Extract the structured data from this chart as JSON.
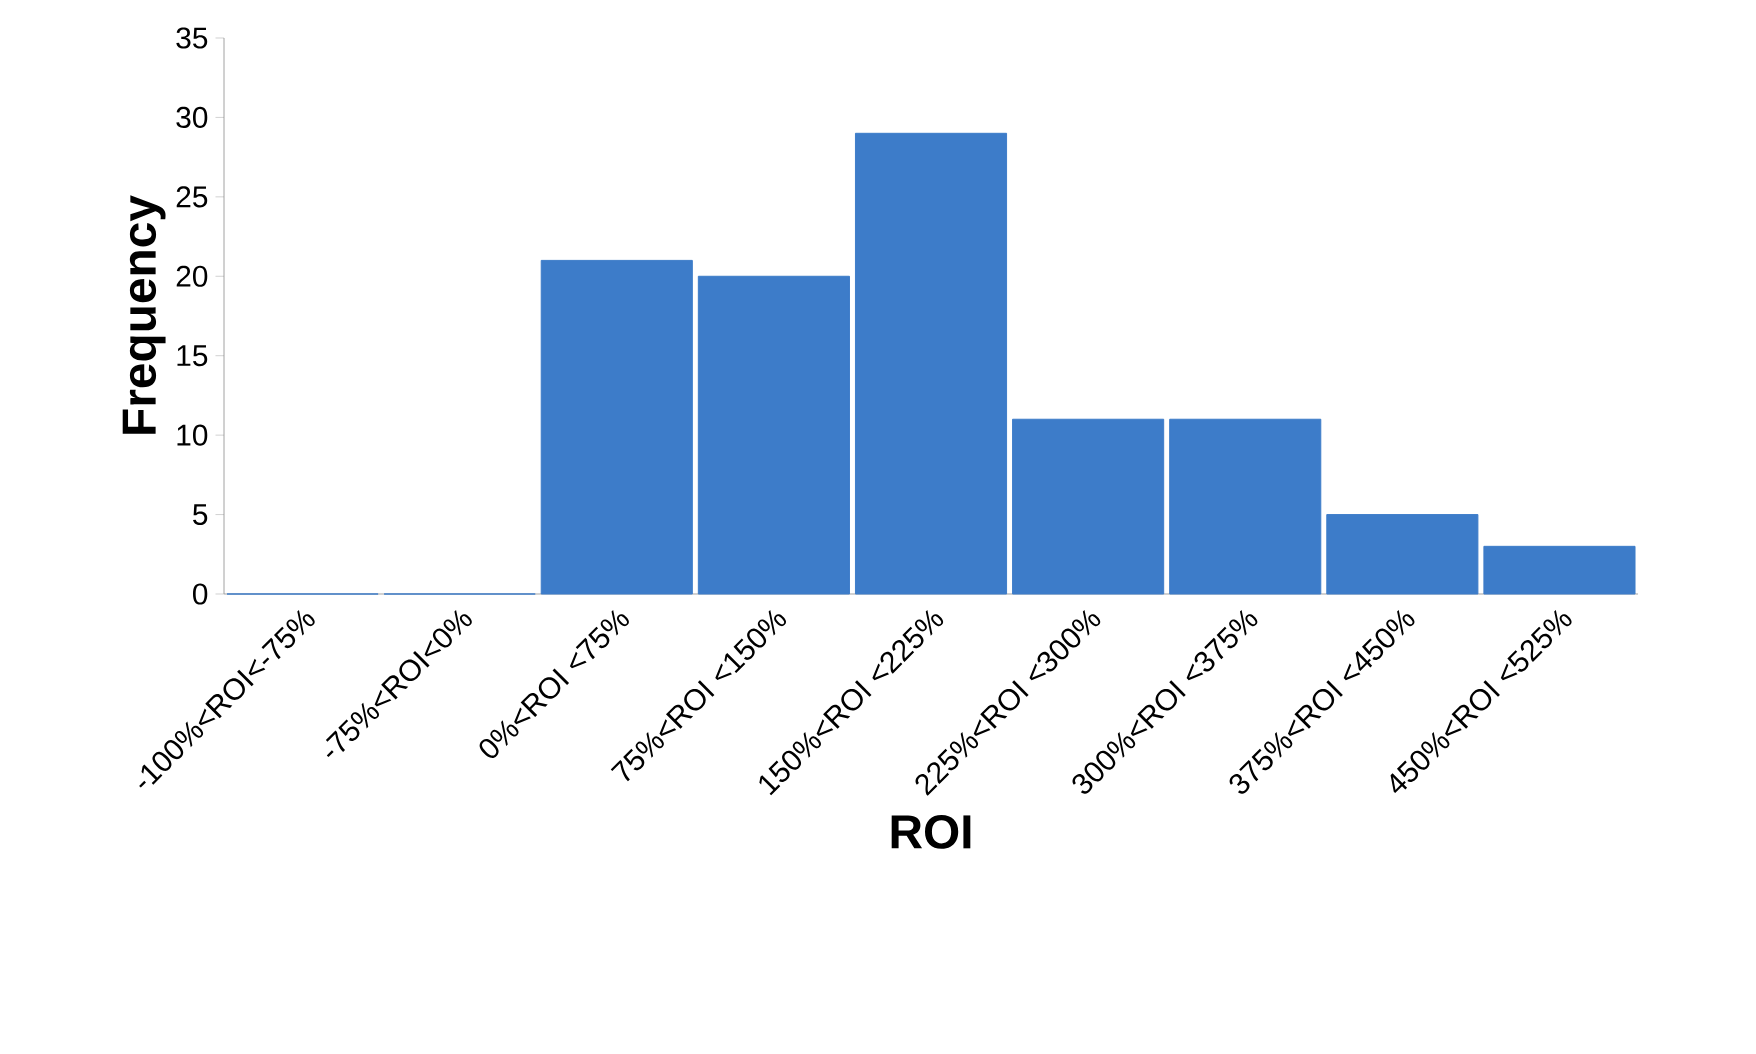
{
  "chart_data": {
    "type": "bar",
    "xlabel": "ROI",
    "ylabel": "Frequency",
    "categories": [
      "-100%<ROI<-75%",
      "-75%<ROI<0%",
      "0%<ROI <75%",
      "75%<ROI <150%",
      "150%<ROI <225%",
      "225%<ROI <300%",
      "300%<ROI <375%",
      "375%<ROI <450%",
      "450%<ROI <525%"
    ],
    "values": [
      0,
      0,
      21,
      20,
      29,
      11,
      11,
      5,
      3
    ],
    "color": "#3d7cc9",
    "ylim": [
      0,
      35
    ],
    "yticks": [
      0,
      5,
      10,
      15,
      20,
      25,
      30,
      35
    ],
    "grid": false
  }
}
